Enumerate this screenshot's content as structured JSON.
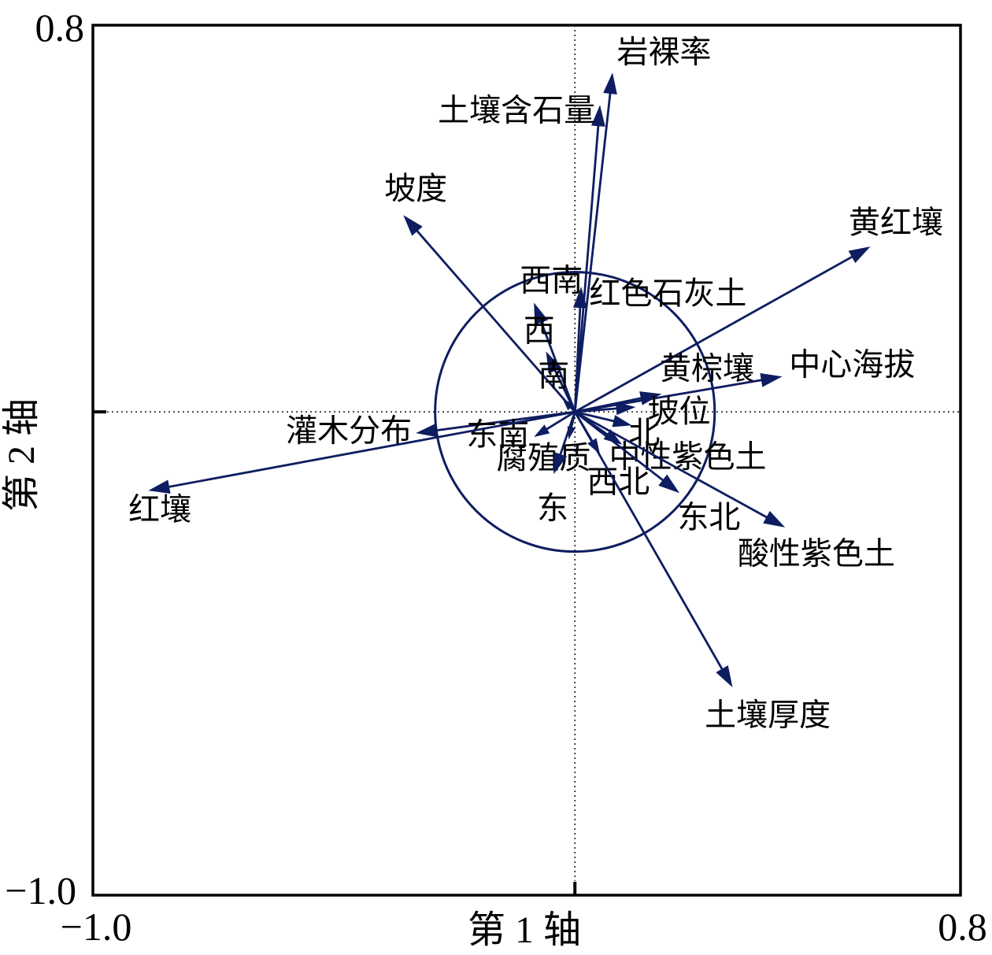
{
  "figure": {
    "background": "#ffffff",
    "axis_color": "#000000",
    "arrow_color": "#0e1d60",
    "x_axis": {
      "title": "第 1 轴",
      "min_label": "−1.0",
      "max_label": "0.8"
    },
    "y_axis": {
      "title": "第 2 轴",
      "min_label": "−1.0",
      "max_label": "0.8"
    }
  },
  "chart_data": {
    "type": "scatter",
    "subtype": "ordination-biplot-vectors",
    "title": "",
    "xlabel": "第 1 轴",
    "ylabel": "第 2 轴",
    "xlim": [
      -1.0,
      0.8
    ],
    "ylim": [
      -1.0,
      0.8
    ],
    "grid": "dotted crosshair through origin",
    "legend": "none",
    "circle_radius": 0.29,
    "vectors": [
      {
        "name": "岩裸率",
        "x": 0.078,
        "y": 0.702,
        "label_x": 0.185,
        "label_y": 0.745
      },
      {
        "name": "土壤含石量",
        "x": 0.052,
        "y": 0.635,
        "label_x": -0.121,
        "label_y": 0.624
      },
      {
        "name": "坡度",
        "x": -0.356,
        "y": 0.407,
        "label_x": -0.33,
        "label_y": 0.462
      },
      {
        "name": "黄红壤",
        "x": 0.613,
        "y": 0.342,
        "label_x": 0.666,
        "label_y": 0.392
      },
      {
        "name": "红色石灰土",
        "x": 0.013,
        "y": 0.259,
        "label_x": 0.193,
        "label_y": 0.245
      },
      {
        "name": "西南",
        "x": -0.085,
        "y": 0.226,
        "label_x": -0.049,
        "label_y": 0.272
      },
      {
        "name": "西",
        "x": -0.06,
        "y": 0.125,
        "label_x": -0.074,
        "label_y": 0.168
      },
      {
        "name": "南",
        "x": -0.026,
        "y": 0.028,
        "label_x": -0.044,
        "label_y": 0.076
      },
      {
        "name": "黄棕壤",
        "x": 0.18,
        "y": 0.037,
        "label_x": 0.274,
        "label_y": 0.09
      },
      {
        "name": "中心海拔",
        "x": 0.43,
        "y": 0.073,
        "label_x": 0.575,
        "label_y": 0.098
      },
      {
        "name": "坡位",
        "x": 0.126,
        "y": 0.01,
        "label_x": 0.216,
        "label_y": 0.001
      },
      {
        "name": "北",
        "x": 0.118,
        "y": -0.028,
        "label_x": 0.144,
        "label_y": -0.044
      },
      {
        "name": "灌木分布",
        "x": -0.33,
        "y": -0.044,
        "label_x": -0.469,
        "label_y": -0.039
      },
      {
        "name": "东南",
        "x": -0.085,
        "y": -0.052,
        "label_x": -0.16,
        "label_y": -0.047
      },
      {
        "name": "腐殖质",
        "x": -0.013,
        "y": -0.057,
        "label_x": -0.065,
        "label_y": -0.095
      },
      {
        "name": "西北",
        "x": 0.052,
        "y": -0.088,
        "label_x": 0.09,
        "label_y": -0.145
      },
      {
        "name": "中性紫色土",
        "x": 0.098,
        "y": -0.068,
        "label_x": 0.234,
        "label_y": -0.093
      },
      {
        "name": "东",
        "x": -0.044,
        "y": -0.129,
        "label_x": -0.046,
        "label_y": -0.199
      },
      {
        "name": "东北",
        "x": 0.217,
        "y": -0.168,
        "label_x": 0.278,
        "label_y": -0.218
      },
      {
        "name": "红壤",
        "x": -0.885,
        "y": -0.163,
        "label_x": -0.861,
        "label_y": -0.202
      },
      {
        "name": "酸性紫色土",
        "x": 0.436,
        "y": -0.239,
        "label_x": 0.501,
        "label_y": -0.293
      },
      {
        "name": "土壤厚度",
        "x": 0.327,
        "y": -0.57,
        "label_x": 0.4,
        "label_y": -0.627
      }
    ]
  }
}
